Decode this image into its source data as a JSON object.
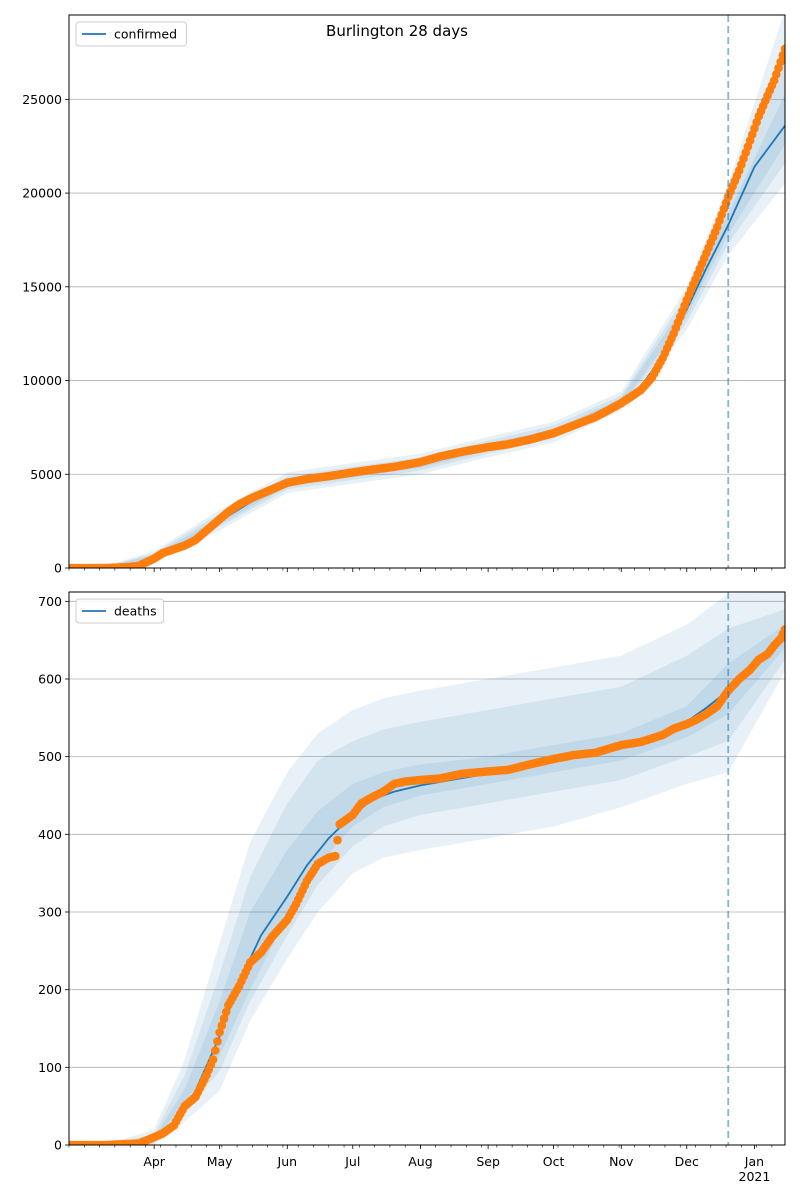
{
  "chart_data": [
    {
      "type": "line",
      "title": "Burlington 28 days",
      "legend": {
        "position": "top-left",
        "entries": [
          "confirmed"
        ]
      },
      "grid": {
        "y": true,
        "x": false
      },
      "ylim": [
        0,
        29500
      ],
      "y_ticks": [
        0,
        5000,
        10000,
        15000,
        20000,
        25000
      ],
      "x_start": "2020-02-22",
      "x_end": "2021-01-15",
      "forecast_start": "2020-12-20",
      "series": [
        {
          "name": "confirmed",
          "style": "model-line",
          "color": "#1f77b4",
          "x": [
            "2020-02-22",
            "2020-03-15",
            "2020-03-22",
            "2020-04-01",
            "2020-04-10",
            "2020-04-20",
            "2020-05-01",
            "2020-05-15",
            "2020-06-01",
            "2020-06-15",
            "2020-07-01",
            "2020-07-15",
            "2020-08-01",
            "2020-08-15",
            "2020-09-01",
            "2020-09-15",
            "2020-10-01",
            "2020-10-15",
            "2020-10-25",
            "2020-11-01",
            "2020-11-10",
            "2020-11-20",
            "2020-12-01",
            "2020-12-10",
            "2020-12-20",
            "2021-01-01",
            "2021-01-15"
          ],
          "y": [
            0,
            50,
            100,
            600,
            1050,
            1600,
            2500,
            3500,
            4500,
            4800,
            5000,
            5200,
            5550,
            6000,
            6450,
            6800,
            7200,
            7800,
            8300,
            8850,
            9700,
            11300,
            13800,
            16000,
            18300,
            21400,
            23600
          ]
        },
        {
          "name": "observed",
          "style": "points",
          "color": "#ff7f0e",
          "x": [
            "2020-02-22",
            "2020-03-01",
            "2020-03-10",
            "2020-03-20",
            "2020-03-25",
            "2020-04-01",
            "2020-04-05",
            "2020-04-10",
            "2020-04-15",
            "2020-04-20",
            "2020-04-25",
            "2020-05-01",
            "2020-05-05",
            "2020-05-10",
            "2020-05-15",
            "2020-05-20",
            "2020-05-25",
            "2020-06-01",
            "2020-06-10",
            "2020-06-20",
            "2020-07-01",
            "2020-07-10",
            "2020-07-20",
            "2020-08-01",
            "2020-08-10",
            "2020-08-20",
            "2020-09-01",
            "2020-09-10",
            "2020-09-20",
            "2020-10-01",
            "2020-10-10",
            "2020-10-20",
            "2020-10-25",
            "2020-11-01",
            "2020-11-05",
            "2020-11-10",
            "2020-11-15",
            "2020-11-20",
            "2020-11-25",
            "2020-12-01",
            "2020-12-05",
            "2020-12-10",
            "2020-12-15",
            "2020-12-20",
            "2020-12-25",
            "2020-12-30",
            "2021-01-03",
            "2021-01-07",
            "2021-01-10",
            "2021-01-13",
            "2021-01-15"
          ],
          "y": [
            0,
            0,
            0,
            50,
            120,
            500,
            800,
            1000,
            1200,
            1500,
            2000,
            2600,
            3000,
            3400,
            3700,
            3950,
            4200,
            4550,
            4750,
            4900,
            5100,
            5250,
            5400,
            5650,
            5950,
            6200,
            6450,
            6600,
            6850,
            7200,
            7600,
            8050,
            8350,
            8800,
            9100,
            9500,
            10150,
            11200,
            12500,
            14300,
            15400,
            16800,
            18200,
            19800,
            21200,
            22800,
            24100,
            25200,
            26000,
            27000,
            27700
          ]
        }
      ],
      "bands": [
        {
          "x": [
            "2020-03-10",
            "2020-04-01",
            "2020-05-01",
            "2020-06-01",
            "2020-07-01",
            "2020-08-01",
            "2020-09-01",
            "2020-10-01",
            "2020-11-01",
            "2020-12-01",
            "2020-12-20",
            "2021-01-15"
          ],
          "lower": [
            0,
            400,
            2000,
            4000,
            4500,
            5000,
            5900,
            6700,
            8400,
            12700,
            16700,
            20500
          ],
          "upper": [
            120,
            900,
            3100,
            5100,
            5600,
            6100,
            7000,
            7800,
            9400,
            15000,
            20500,
            29800
          ]
        },
        {
          "x": [
            "2020-03-10",
            "2020-04-01",
            "2020-05-01",
            "2020-06-01",
            "2020-07-01",
            "2020-08-01",
            "2020-09-01",
            "2020-10-01",
            "2020-11-01",
            "2020-12-01",
            "2020-12-20",
            "2021-01-15"
          ],
          "lower": [
            0,
            500,
            2200,
            4200,
            4700,
            5200,
            6100,
            6900,
            8550,
            13100,
            17300,
            21600
          ],
          "upper": [
            90,
            800,
            2900,
            4900,
            5400,
            5900,
            6800,
            7600,
            9200,
            14600,
            19600,
            27500
          ]
        },
        {
          "x": [
            "2020-03-10",
            "2020-04-01",
            "2020-05-01",
            "2020-06-01",
            "2020-07-01",
            "2020-08-01",
            "2020-09-01",
            "2020-10-01",
            "2020-11-01",
            "2020-12-01",
            "2020-12-20",
            "2021-01-15"
          ],
          "lower": [
            0,
            550,
            2350,
            4350,
            4850,
            5350,
            6250,
            7050,
            8700,
            13450,
            17800,
            22600
          ],
          "upper": [
            70,
            700,
            2700,
            4700,
            5200,
            5750,
            6650,
            7400,
            9050,
            14200,
            18900,
            25300
          ]
        }
      ]
    },
    {
      "type": "line",
      "title": "",
      "legend": {
        "position": "top-left",
        "entries": [
          "deaths"
        ]
      },
      "grid": {
        "y": true,
        "x": false
      },
      "ylim": [
        0,
        712
      ],
      "y_ticks": [
        0,
        100,
        200,
        300,
        400,
        500,
        600,
        700
      ],
      "x_start": "2020-02-22",
      "x_end": "2021-01-15",
      "x_tick_labels": [
        "Apr",
        "May",
        "Jun",
        "Jul",
        "Aug",
        "Sep",
        "Oct",
        "Nov",
        "Dec",
        "Jan\n2021"
      ],
      "x_tick_dates": [
        "2020-04-01",
        "2020-05-01",
        "2020-06-01",
        "2020-07-01",
        "2020-08-01",
        "2020-09-01",
        "2020-10-01",
        "2020-11-01",
        "2020-12-01",
        "2021-01-01"
      ],
      "forecast_start": "2020-12-20",
      "series": [
        {
          "name": "deaths",
          "style": "model-line",
          "color": "#1f77b4",
          "x": [
            "2020-02-22",
            "2020-03-25",
            "2020-04-01",
            "2020-04-10",
            "2020-04-20",
            "2020-05-01",
            "2020-05-10",
            "2020-05-20",
            "2020-06-01",
            "2020-06-10",
            "2020-06-20",
            "2020-07-01",
            "2020-07-10",
            "2020-07-20",
            "2020-08-01",
            "2020-08-15",
            "2020-09-01",
            "2020-09-15",
            "2020-10-01",
            "2020-10-15",
            "2020-11-01",
            "2020-11-15",
            "2020-12-01",
            "2020-12-10",
            "2020-12-20",
            "2021-01-01",
            "2021-01-15"
          ],
          "y": [
            0,
            2,
            8,
            25,
            70,
            140,
            210,
            270,
            320,
            360,
            395,
            425,
            445,
            455,
            463,
            470,
            478,
            485,
            495,
            503,
            513,
            525,
            545,
            563,
            585,
            622,
            655
          ]
        },
        {
          "name": "observed",
          "style": "points",
          "color": "#ff7f0e",
          "x": [
            "2020-02-22",
            "2020-03-10",
            "2020-03-25",
            "2020-04-01",
            "2020-04-05",
            "2020-04-10",
            "2020-04-15",
            "2020-04-20",
            "2020-04-25",
            "2020-04-28",
            "2020-05-01",
            "2020-05-05",
            "2020-05-10",
            "2020-05-15",
            "2020-05-20",
            "2020-05-25",
            "2020-06-01",
            "2020-06-05",
            "2020-06-10",
            "2020-06-15",
            "2020-06-20",
            "2020-06-23",
            "2020-06-25",
            "2020-07-01",
            "2020-07-05",
            "2020-07-10",
            "2020-07-15",
            "2020-07-20",
            "2020-07-25",
            "2020-08-01",
            "2020-08-10",
            "2020-08-20",
            "2020-09-01",
            "2020-09-10",
            "2020-09-20",
            "2020-10-01",
            "2020-10-10",
            "2020-10-20",
            "2020-11-01",
            "2020-11-10",
            "2020-11-20",
            "2020-11-25",
            "2020-12-01",
            "2020-12-05",
            "2020-12-10",
            "2020-12-15",
            "2020-12-20",
            "2020-12-25",
            "2020-12-30",
            "2021-01-03",
            "2021-01-07",
            "2021-01-10",
            "2021-01-13",
            "2021-01-15"
          ],
          "y": [
            0,
            0,
            2,
            10,
            15,
            25,
            50,
            62,
            90,
            110,
            145,
            180,
            205,
            235,
            248,
            268,
            290,
            310,
            340,
            362,
            370,
            372,
            413,
            425,
            440,
            448,
            455,
            465,
            468,
            470,
            472,
            478,
            481,
            483,
            490,
            497,
            502,
            505,
            515,
            519,
            528,
            536,
            542,
            547,
            555,
            565,
            585,
            600,
            612,
            625,
            632,
            643,
            652,
            664
          ]
        }
      ],
      "bands": [
        {
          "x": [
            "2020-03-15",
            "2020-04-01",
            "2020-04-15",
            "2020-05-01",
            "2020-05-15",
            "2020-06-01",
            "2020-06-15",
            "2020-07-01",
            "2020-07-15",
            "2020-08-01",
            "2020-09-01",
            "2020-10-01",
            "2020-11-01",
            "2020-12-01",
            "2020-12-20",
            "2021-01-15"
          ],
          "lower": [
            0,
            0,
            30,
            70,
            160,
            240,
            300,
            350,
            370,
            380,
            395,
            410,
            435,
            465,
            480,
            610
          ],
          "upper": [
            5,
            20,
            110,
            260,
            390,
            480,
            530,
            560,
            575,
            585,
            600,
            615,
            630,
            670,
            710,
            712
          ]
        },
        {
          "x": [
            "2020-03-15",
            "2020-04-01",
            "2020-04-15",
            "2020-05-01",
            "2020-05-15",
            "2020-06-01",
            "2020-06-15",
            "2020-07-01",
            "2020-07-15",
            "2020-08-01",
            "2020-09-01",
            "2020-10-01",
            "2020-11-01",
            "2020-12-01",
            "2020-12-20",
            "2021-01-15"
          ],
          "lower": [
            0,
            2,
            45,
            95,
            185,
            270,
            335,
            385,
            410,
            425,
            440,
            455,
            470,
            500,
            520,
            625
          ],
          "upper": [
            3,
            14,
            90,
            220,
            345,
            440,
            495,
            520,
            535,
            545,
            560,
            575,
            590,
            630,
            665,
            690
          ]
        },
        {
          "x": [
            "2020-03-15",
            "2020-04-01",
            "2020-04-15",
            "2020-05-01",
            "2020-05-15",
            "2020-06-01",
            "2020-06-15",
            "2020-07-01",
            "2020-07-15",
            "2020-08-01",
            "2020-09-01",
            "2020-10-01",
            "2020-11-01",
            "2020-12-01",
            "2020-12-20",
            "2021-01-15"
          ],
          "lower": [
            0,
            4,
            55,
            115,
            200,
            295,
            360,
            410,
            435,
            450,
            465,
            480,
            495,
            525,
            555,
            640
          ],
          "upper": [
            2,
            10,
            72,
            185,
            300,
            380,
            430,
            465,
            480,
            490,
            500,
            515,
            530,
            565,
            620,
            670
          ]
        }
      ]
    }
  ]
}
